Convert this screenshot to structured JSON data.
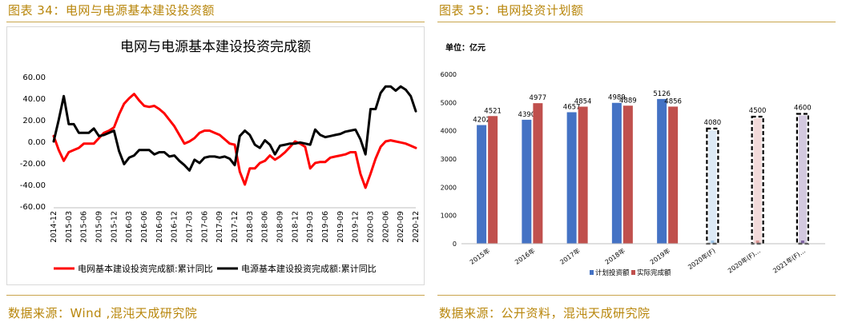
{
  "left": {
    "fig_title": "图表 34：电网与电源基本建设投资额",
    "source": "数据来源：Wind ,混沌天成研究院",
    "chart_data": {
      "type": "line",
      "title": "电网与电源基本建设投资完成额",
      "ylim": [
        -60,
        60
      ],
      "ytick_labels": [
        "60.00",
        "40.00",
        "20.00",
        "0.00",
        "-20.00",
        "-40.00",
        "-60.00"
      ],
      "ytick_values": [
        60,
        40,
        20,
        0,
        -20,
        -40,
        -60
      ],
      "x": [
        "2014-12",
        "2015-01",
        "2015-02",
        "2015-03",
        "2015-04",
        "2015-05",
        "2015-06",
        "2015-07",
        "2015-08",
        "2015-09",
        "2015-10",
        "2015-11",
        "2015-12",
        "2016-01",
        "2016-02",
        "2016-03",
        "2016-04",
        "2016-05",
        "2016-06",
        "2016-07",
        "2016-08",
        "2016-09",
        "2016-10",
        "2016-11",
        "2016-12",
        "2017-01",
        "2017-02",
        "2017-03",
        "2017-04",
        "2017-05",
        "2017-06",
        "2017-07",
        "2017-08",
        "2017-09",
        "2017-10",
        "2017-11",
        "2017-12",
        "2018-01",
        "2018-02",
        "2018-03",
        "2018-04",
        "2018-05",
        "2018-06",
        "2018-07",
        "2018-08",
        "2018-09",
        "2018-10",
        "2018-11",
        "2018-12",
        "2019-01",
        "2019-02",
        "2019-03",
        "2019-04",
        "2019-05",
        "2019-06",
        "2019-07",
        "2019-08",
        "2019-09",
        "2019-10",
        "2019-11",
        "2019-12",
        "2020-01",
        "2020-02",
        "2020-03",
        "2020-04",
        "2020-05",
        "2020-06",
        "2020-07",
        "2020-08",
        "2020-09",
        "2020-10",
        "2020-11",
        "2020-12"
      ],
      "xtick_labels": [
        "2014-12",
        "2015-03",
        "2015-06",
        "2015-09",
        "2015-12",
        "2016-03",
        "2016-06",
        "2016-09",
        "2016-12",
        "2017-03",
        "2017-06",
        "2017-09",
        "2017-12",
        "2018-03",
        "2018-06",
        "2018-09",
        "2018-12",
        "2019-03",
        "2019-06",
        "2019-09",
        "2019-12",
        "2020-03",
        "2020-06",
        "2020-09",
        "2020-12"
      ],
      "series": [
        {
          "name": "电网基本建设投资完成额:累计同比",
          "color": "#ff0000",
          "values": [
            5,
            -8,
            -18,
            -10,
            -8,
            -6,
            -2,
            -2,
            -2,
            3,
            8,
            10,
            13,
            25,
            35,
            40,
            44,
            38,
            33,
            32,
            33,
            30,
            26,
            20,
            14,
            6,
            -2,
            0,
            3,
            8,
            10,
            10,
            8,
            6,
            2,
            -2,
            -3,
            -28,
            -40,
            -25,
            -25,
            -20,
            -18,
            -13,
            -17,
            -14,
            -10,
            -5,
            0,
            -2,
            -5,
            -25,
            -20,
            -19,
            -19,
            -15,
            -14,
            -13,
            -12,
            -10,
            -10,
            -30,
            -43,
            -30,
            -16,
            -5,
            0,
            1,
            0,
            -1,
            -2,
            -4,
            -6
          ]
        },
        {
          "name": "电源基本建设投资完成额:累计同比",
          "color": "#000000",
          "values": [
            0,
            20,
            42,
            16,
            16,
            8,
            8,
            8,
            12,
            5,
            6,
            8,
            10,
            -9,
            -21,
            -15,
            -13,
            -8,
            -8,
            -8,
            -12,
            -10,
            -10,
            -14,
            -13,
            -18,
            -22,
            -27,
            -17,
            -20,
            -15,
            -14,
            -14,
            -15,
            -14,
            -16,
            -22,
            5,
            10,
            6,
            -3,
            -6,
            1,
            -3,
            -12,
            -4,
            -3,
            -2,
            -2,
            -1,
            -2,
            -3,
            11,
            6,
            4,
            5,
            6,
            7,
            9,
            10,
            11,
            2,
            -12,
            30,
            30,
            45,
            51,
            51,
            47,
            51,
            48,
            42,
            28
          ]
        }
      ]
    }
  },
  "right": {
    "fig_title": "图表 35：电网投资计划额",
    "source": "数据来源：公开资料，混沌天成研究院",
    "chart_data": {
      "type": "bar",
      "unit_label": "单位：亿元",
      "ylim": [
        0,
        6000
      ],
      "ytick_labels": [
        "6000",
        "5000",
        "4000",
        "3000",
        "2000",
        "1000",
        "0"
      ],
      "ytick_values": [
        6000,
        5000,
        4000,
        3000,
        2000,
        1000,
        0
      ],
      "categories": [
        "2015年",
        "2016年",
        "2017年",
        "2018年",
        "2019年",
        "2020年(F)",
        "2020年(F)…",
        "2021年(F)…"
      ],
      "series": [
        {
          "name": "计划投资额",
          "color": "#4472c4",
          "values": [
            4202,
            4390,
            4657,
            4989,
            5126,
            null,
            null,
            null
          ]
        },
        {
          "name": "实际完成额",
          "color": "#c0504d",
          "values": [
            4521,
            4977,
            4854,
            4889,
            4856,
            null,
            null,
            null
          ]
        }
      ],
      "forecast": [
        {
          "category": "2020年(F)",
          "value": 4080,
          "color": "#9dc3e6"
        },
        {
          "category": "2020年(F)…",
          "value": 4500,
          "color": "#d99694"
        },
        {
          "category": "2021年(F)…",
          "value": 4600,
          "color": "#8064a2"
        }
      ]
    }
  }
}
